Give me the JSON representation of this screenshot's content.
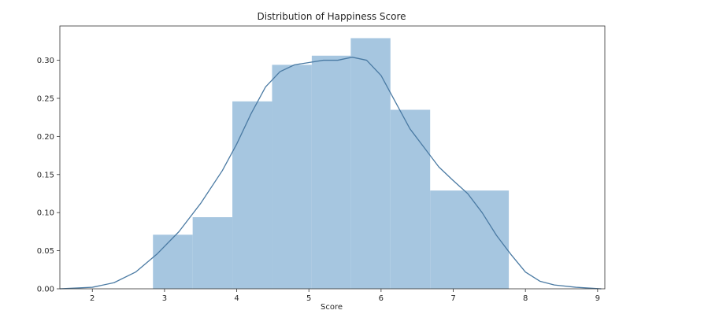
{
  "chart_data": {
    "type": "bar",
    "title": "Distribution of Happiness Score",
    "xlabel": "Score",
    "ylabel": "",
    "xlim": [
      1.55,
      9.1
    ],
    "ylim": [
      0,
      0.345
    ],
    "x_ticks": [
      2,
      3,
      4,
      5,
      6,
      7,
      8,
      9
    ],
    "x_tick_labels": [
      "2",
      "3",
      "4",
      "5",
      "6",
      "7",
      "8",
      "9"
    ],
    "y_ticks": [
      0,
      0.05,
      0.1,
      0.15,
      0.2,
      0.25,
      0.3
    ],
    "y_tick_labels": [
      "0.00",
      "0.05",
      "0.10",
      "0.15",
      "0.20",
      "0.25",
      "0.30"
    ],
    "grid": false,
    "histogram": {
      "bin_edges": [
        2.84,
        3.39,
        3.94,
        4.49,
        5.04,
        5.58,
        6.13,
        6.68,
        7.77
      ],
      "values": [
        0.071,
        0.094,
        0.246,
        0.294,
        0.306,
        0.329,
        0.235,
        0.129
      ],
      "color": "#a6c6e0"
    },
    "kde": {
      "x": [
        1.55,
        2.0,
        2.3,
        2.6,
        2.9,
        3.2,
        3.5,
        3.8,
        4.0,
        4.2,
        4.4,
        4.6,
        4.8,
        5.0,
        5.2,
        5.4,
        5.6,
        5.8,
        6.0,
        6.2,
        6.4,
        6.6,
        6.8,
        7.0,
        7.2,
        7.4,
        7.6,
        7.8,
        8.0,
        8.2,
        8.4,
        8.7,
        9.05
      ],
      "y": [
        0.0,
        0.002,
        0.008,
        0.022,
        0.046,
        0.075,
        0.112,
        0.155,
        0.19,
        0.23,
        0.265,
        0.285,
        0.294,
        0.297,
        0.3,
        0.3,
        0.304,
        0.3,
        0.28,
        0.245,
        0.21,
        0.185,
        0.16,
        0.142,
        0.125,
        0.1,
        0.07,
        0.045,
        0.022,
        0.01,
        0.005,
        0.002,
        0.0
      ],
      "color": "#4a7aa3"
    }
  }
}
